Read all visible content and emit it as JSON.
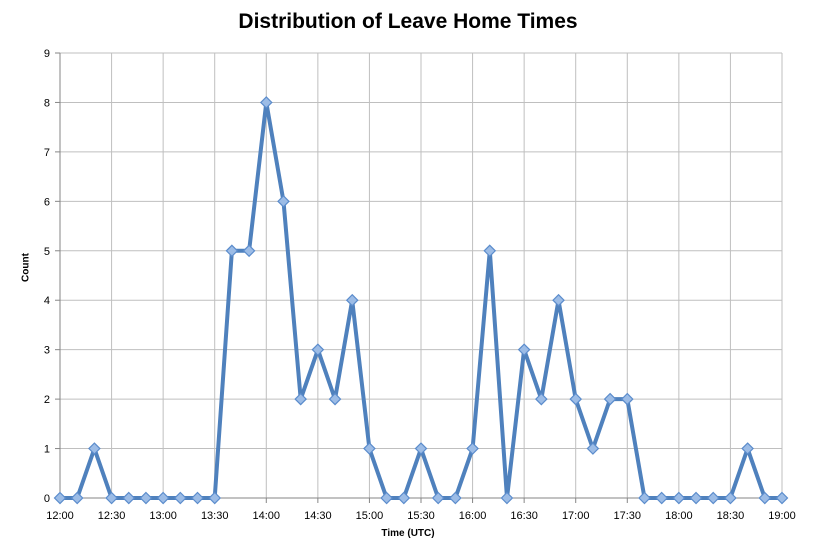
{
  "chart_data": {
    "type": "line",
    "title": "Distribution of Leave Home Times",
    "xlabel": "Time (UTC)",
    "ylabel": "Count",
    "ylim": [
      0,
      9
    ],
    "yticks": [
      "0",
      "1",
      "2",
      "3",
      "4",
      "5",
      "6",
      "7",
      "8",
      "9"
    ],
    "xticks": [
      "12:00",
      "12:30",
      "13:00",
      "13:30",
      "14:00",
      "14:30",
      "15:00",
      "15:30",
      "16:00",
      "16:30",
      "17:00",
      "17:30",
      "18:00",
      "18:30",
      "19:00"
    ],
    "xlim_minutes_from_first_tick": [
      0,
      420
    ],
    "grid": true,
    "legend": "none",
    "series": [
      {
        "color": "#4f81bd",
        "marker": "diamond",
        "x": [
          "12:00",
          "12:10",
          "12:20",
          "12:30",
          "12:40",
          "12:50",
          "13:00",
          "13:10",
          "13:20",
          "13:30",
          "13:40",
          "13:50",
          "14:00",
          "14:10",
          "14:20",
          "14:30",
          "14:40",
          "14:50",
          "15:00",
          "15:10",
          "15:20",
          "15:30",
          "15:40",
          "15:50",
          "16:00",
          "16:10",
          "16:20",
          "16:30",
          "16:40",
          "16:50",
          "17:00",
          "17:10",
          "17:20",
          "17:30",
          "17:40",
          "17:50",
          "18:00",
          "18:10",
          "18:20",
          "18:30",
          "18:40",
          "18:50",
          "19:00"
        ],
        "values": [
          0,
          0,
          1,
          0,
          0,
          0,
          0,
          0,
          0,
          0,
          5,
          5,
          8,
          6,
          2,
          3,
          2,
          4,
          1,
          0,
          0,
          1,
          0,
          0,
          1,
          5,
          0,
          3,
          2,
          4,
          2,
          1,
          2,
          2,
          0,
          0,
          0,
          0,
          0,
          0,
          1,
          0,
          0
        ]
      }
    ]
  }
}
